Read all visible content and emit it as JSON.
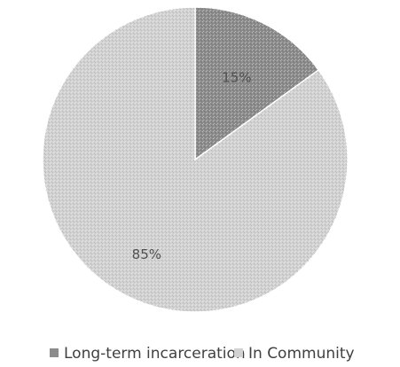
{
  "chart_data": {
    "type": "pie",
    "slices": [
      {
        "name": "Long-term incarceration",
        "value": 15,
        "label": "15%",
        "color": "#8c8c8c"
      },
      {
        "name": "In Community",
        "value": 85,
        "label": "85%",
        "color": "#d2d2d2"
      }
    ],
    "start": "12 o'clock",
    "direction": "clockwise",
    "legend_position": "bottom"
  }
}
